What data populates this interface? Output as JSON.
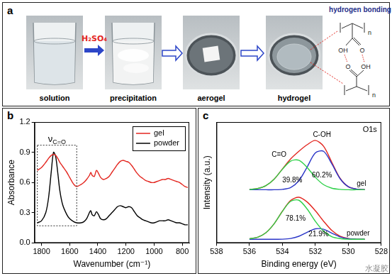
{
  "panel_a": {
    "label": "a",
    "steps": [
      "solution",
      "precipitation",
      "aerogel",
      "hydrogel"
    ],
    "reagent": "H₂SO₄",
    "inset_title": "hydrogen bonding",
    "top_chain": {
      "repeat": "n",
      "groups": [
        "OH",
        "O"
      ]
    },
    "bottom_chain": {
      "repeat": "n",
      "groups": [
        "O",
        "OH"
      ]
    }
  },
  "chart_data": [
    {
      "panel": "b",
      "type": "line",
      "x_label": "Wavenumber (cm⁻¹)",
      "y_label": "Absorbance",
      "x": [
        1830,
        1800,
        1770,
        1750,
        1730,
        1715,
        1700,
        1685,
        1670,
        1650,
        1620,
        1600,
        1570,
        1550,
        1520,
        1500,
        1480,
        1460,
        1450,
        1440,
        1425,
        1410,
        1395,
        1380,
        1360,
        1340,
        1320,
        1300,
        1280,
        1260,
        1240,
        1220,
        1200,
        1180,
        1160,
        1140,
        1120,
        1100,
        1080,
        1060,
        1040,
        1020,
        1000,
        980,
        960,
        940,
        920,
        900,
        880,
        860,
        840,
        820,
        800,
        780,
        760
      ],
      "series": [
        {
          "name": "gel",
          "color": "#e3261f",
          "values": [
            0.72,
            0.75,
            0.8,
            0.84,
            0.87,
            0.88,
            0.87,
            0.84,
            0.8,
            0.76,
            0.7,
            0.65,
            0.58,
            0.56,
            0.58,
            0.6,
            0.63,
            0.67,
            0.7,
            0.67,
            0.66,
            0.72,
            0.69,
            0.65,
            0.63,
            0.64,
            0.66,
            0.7,
            0.74,
            0.78,
            0.81,
            0.82,
            0.81,
            0.8,
            0.77,
            0.73,
            0.69,
            0.66,
            0.64,
            0.62,
            0.61,
            0.6,
            0.6,
            0.61,
            0.62,
            0.63,
            0.63,
            0.64,
            0.63,
            0.62,
            0.61,
            0.6,
            0.58,
            0.56,
            0.55
          ]
        },
        {
          "name": "powder",
          "color": "#000000",
          "values": [
            0.2,
            0.22,
            0.3,
            0.45,
            0.72,
            0.9,
            0.86,
            0.7,
            0.52,
            0.38,
            0.28,
            0.24,
            0.21,
            0.2,
            0.2,
            0.21,
            0.24,
            0.3,
            0.32,
            0.28,
            0.27,
            0.31,
            0.28,
            0.24,
            0.23,
            0.24,
            0.27,
            0.3,
            0.33,
            0.36,
            0.37,
            0.36,
            0.35,
            0.36,
            0.35,
            0.31,
            0.27,
            0.25,
            0.23,
            0.22,
            0.21,
            0.2,
            0.2,
            0.21,
            0.22,
            0.22,
            0.22,
            0.23,
            0.22,
            0.21,
            0.2,
            0.2,
            0.19,
            0.18,
            0.18
          ]
        }
      ],
      "xlim": [
        1850,
        750
      ],
      "xticks": [
        1800,
        1600,
        1400,
        1200,
        1000,
        800
      ],
      "ylim": [
        0,
        1.2
      ],
      "yticks": [
        {
          "value": 0,
          "label": "0.0"
        },
        0.3,
        0.6,
        0.9,
        1.2
      ],
      "grid": false,
      "legend": "upper right",
      "annotation": {
        "text": "ν",
        "subscript": "C=O",
        "x": [
          1830,
          1550
        ],
        "y": [
          0.17,
          0.97
        ]
      }
    },
    {
      "panel": "c",
      "type": "line",
      "title": "O1s",
      "x_label": "Binding energy (eV)",
      "y_label": "Intensity (a.u.)",
      "x": [
        536,
        535.5,
        535,
        534.5,
        534,
        533.5,
        533,
        532.5,
        532,
        531.5,
        531,
        530.5,
        530,
        529.5,
        529
      ],
      "series": [
        {
          "color": "#2fd14a",
          "values": [
            4.42,
            4.5,
            4.74,
            5.28,
            6.09,
            6.77,
            6.84,
            6.25,
            5.43,
            4.82,
            4.53,
            4.43,
            4.4,
            4.4,
            4.4
          ]
        },
        {
          "color": "#2a35c8",
          "values": [
            4.4,
            4.4,
            4.4,
            4.4,
            4.43,
            4.58,
            5.14,
            6.27,
            7.45,
            7.58,
            6.54,
            5.32,
            4.65,
            4.45,
            4.41
          ]
        },
        {
          "color": "#e3261f",
          "values": [
            4.42,
            4.5,
            4.74,
            5.28,
            6.12,
            6.95,
            7.58,
            8.12,
            8.48,
            8.0,
            6.67,
            5.35,
            4.65,
            4.45,
            4.41
          ]
        },
        {
          "color": "#2fd14a",
          "values": [
            0.34,
            0.47,
            0.85,
            1.59,
            2.61,
            3.44,
            3.53,
            2.81,
            1.79,
            0.97,
            0.52,
            0.36,
            0.31,
            0.3,
            0.3
          ]
        },
        {
          "color": "#2a35c8",
          "values": [
            0.3,
            0.3,
            0.3,
            0.3,
            0.31,
            0.37,
            0.55,
            0.88,
            1.17,
            1.13,
            0.81,
            0.5,
            0.35,
            0.31,
            0.3
          ]
        },
        {
          "color": "#e3261f",
          "values": [
            0.34,
            0.47,
            0.85,
            1.59,
            2.62,
            3.51,
            3.78,
            3.39,
            2.66,
            1.8,
            1.03,
            0.56,
            0.36,
            0.31,
            0.3
          ]
        }
      ],
      "xlim": [
        538,
        528
      ],
      "xticks": [
        538,
        536,
        534,
        532,
        530,
        528
      ],
      "ylim": [
        0,
        10
      ],
      "grid": false,
      "tick_labels": "x",
      "annotations": [
        {
          "text": "C=O",
          "x": 534.2,
          "y": 7.3
        },
        {
          "text": "C-OH",
          "x": 531.6,
          "y": 8.9
        },
        {
          "text": "39.8%",
          "x": 533.4,
          "y": 5.2
        },
        {
          "text": "60.2%",
          "x": 531.6,
          "y": 5.6
        },
        {
          "text": "gel",
          "x": 529.2,
          "y": 4.9
        },
        {
          "text": "78.1%",
          "x": 533.2,
          "y": 2.0
        },
        {
          "text": "21.9%",
          "x": 531.8,
          "y": 0.72
        },
        {
          "text": "powder",
          "x": 529.4,
          "y": 0.75
        }
      ]
    }
  ],
  "watermark": "水凝胶"
}
